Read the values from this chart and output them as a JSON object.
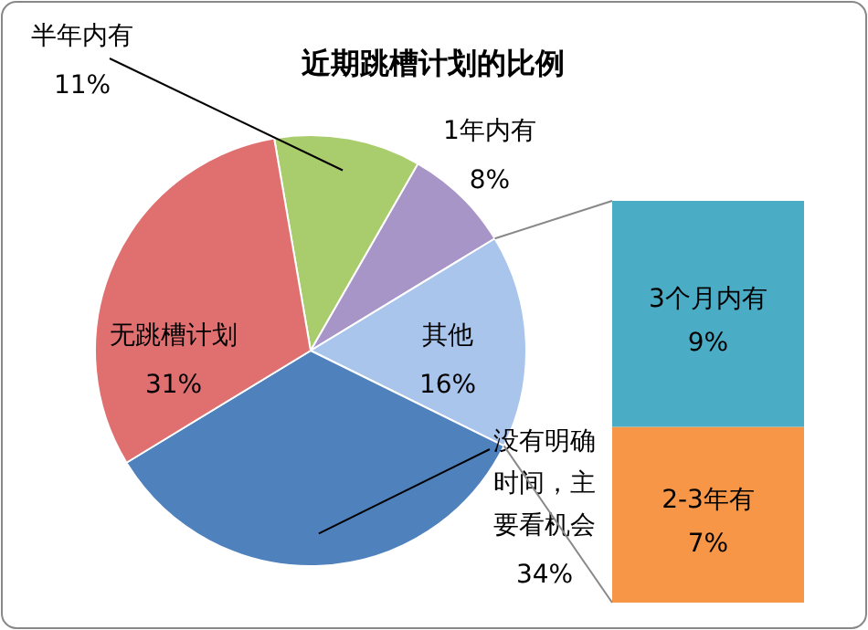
{
  "chart_data": [
    {
      "type": "pie",
      "title": "近期跳槽计划的比例",
      "categories": [
        "半年内有",
        "1年内有",
        "其他",
        "没有明确时间，主要看机会",
        "无跳槽计划"
      ],
      "values": [
        11,
        8,
        16,
        34,
        31
      ],
      "colors": [
        "#a9cc6c",
        "#a895c8",
        "#a9c5ec",
        "#4f81bd",
        "#e07070"
      ],
      "value_labels": [
        "11%",
        "8%",
        "16%",
        "34%",
        "31%"
      ]
    },
    {
      "type": "bar",
      "stacked": true,
      "categories": [
        null
      ],
      "series": [
        {
          "name": "2-3年有",
          "color": "#f79646",
          "values": [
            7
          ],
          "value_labels": [
            "7%"
          ]
        },
        {
          "name": "3个月内有",
          "color": "#4bacc6",
          "values": [
            9
          ],
          "value_labels": [
            "9%"
          ]
        }
      ]
    }
  ]
}
